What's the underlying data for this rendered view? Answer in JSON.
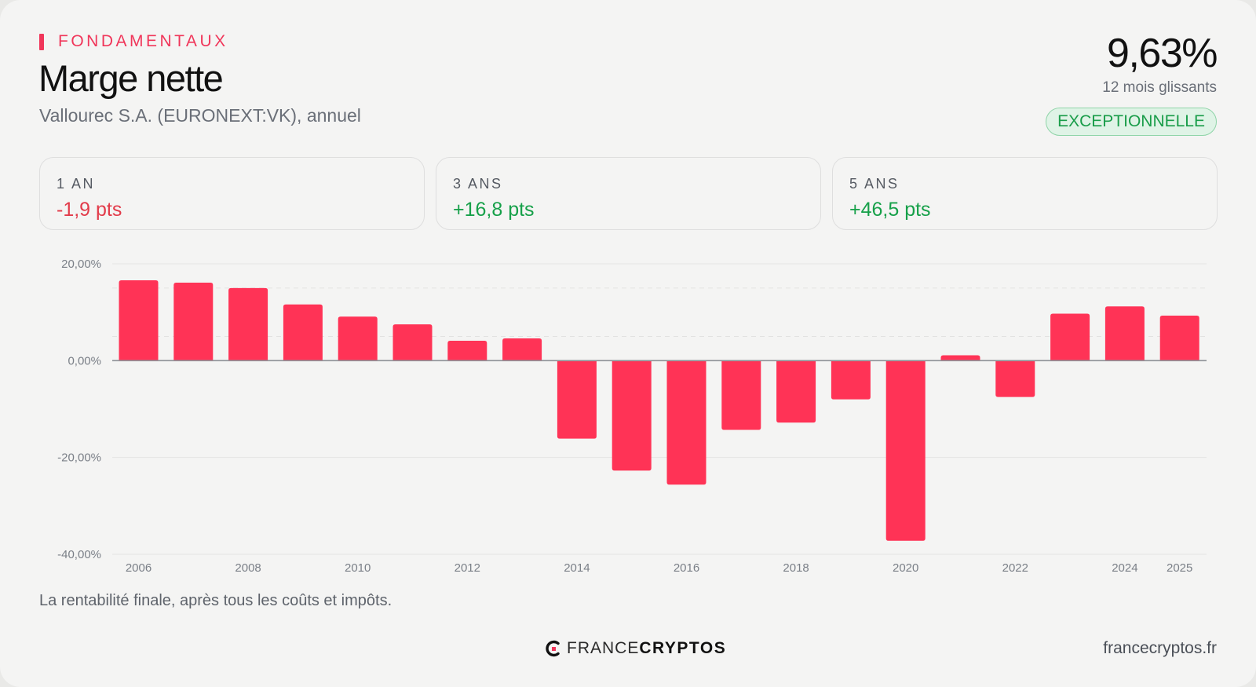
{
  "header": {
    "eyebrow": "FONDAMENTAUX",
    "title": "Marge nette",
    "subtitle": "Vallourec S.A. (EURONEXT:VK), annuel"
  },
  "kpi": {
    "value": "9,63%",
    "caption": "12 mois glissants",
    "badge": "EXCEPTIONNELLE"
  },
  "periods": [
    {
      "label": "1 AN",
      "value": "-1,9 pts",
      "trend": "negative"
    },
    {
      "label": "3 ANS",
      "value": "+16,8 pts",
      "trend": "positive"
    },
    {
      "label": "5 ANS",
      "value": "+46,5 pts",
      "trend": "positive"
    }
  ],
  "chart_data": {
    "type": "bar",
    "categories": [
      "2006",
      "2007",
      "2008",
      "2009",
      "2010",
      "2011",
      "2012",
      "2013",
      "2014",
      "2015",
      "2016",
      "2017",
      "2018",
      "2019",
      "2020",
      "2021",
      "2022",
      "2023",
      "2024",
      "2025"
    ],
    "values": [
      16.6,
      16.1,
      15.0,
      11.6,
      9.1,
      7.5,
      4.1,
      4.6,
      -16.1,
      -22.7,
      -25.6,
      -14.3,
      -12.8,
      -8.0,
      -37.2,
      1.1,
      -7.5,
      9.7,
      11.2,
      9.3
    ],
    "x_tick_labels": [
      "2006",
      "2008",
      "2010",
      "2012",
      "2014",
      "2016",
      "2018",
      "2020",
      "2022",
      "2024",
      "2025"
    ],
    "y_tick_labels": [
      "20,00%",
      "0,00%",
      "-20,00%",
      "-40,00%"
    ],
    "ylim": [
      -40,
      20
    ],
    "bar_color": "#ff3356",
    "title": "",
    "xlabel": "",
    "ylabel": "",
    "grid": true,
    "legend": "none"
  },
  "footer": {
    "note": "La rentabilité finale, après tous les coûts et impôts.",
    "brand_light": "FRANCE",
    "brand_bold": "CRYPTOS",
    "site": "francecryptos.fr"
  }
}
